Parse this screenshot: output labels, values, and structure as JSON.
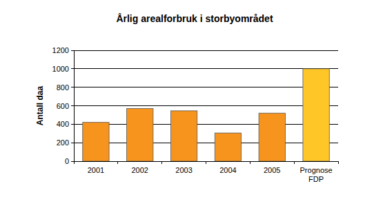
{
  "chart_data": {
    "type": "bar",
    "title": "Årlig arealforbruk i storbyområdet",
    "y_label": "Antall daa",
    "categories": [
      "2001",
      "2002",
      "2003",
      "2004",
      "2005",
      "Prognose FDP"
    ],
    "values": [
      420,
      570,
      545,
      305,
      520,
      1000
    ],
    "colors": [
      "#f7941d",
      "#f7941d",
      "#f7941d",
      "#f7941d",
      "#f7941d",
      "#ffc627"
    ],
    "ylim": [
      0,
      1200
    ],
    "yticks": [
      0,
      200,
      400,
      600,
      800,
      1000,
      1200
    ],
    "grid": true
  }
}
